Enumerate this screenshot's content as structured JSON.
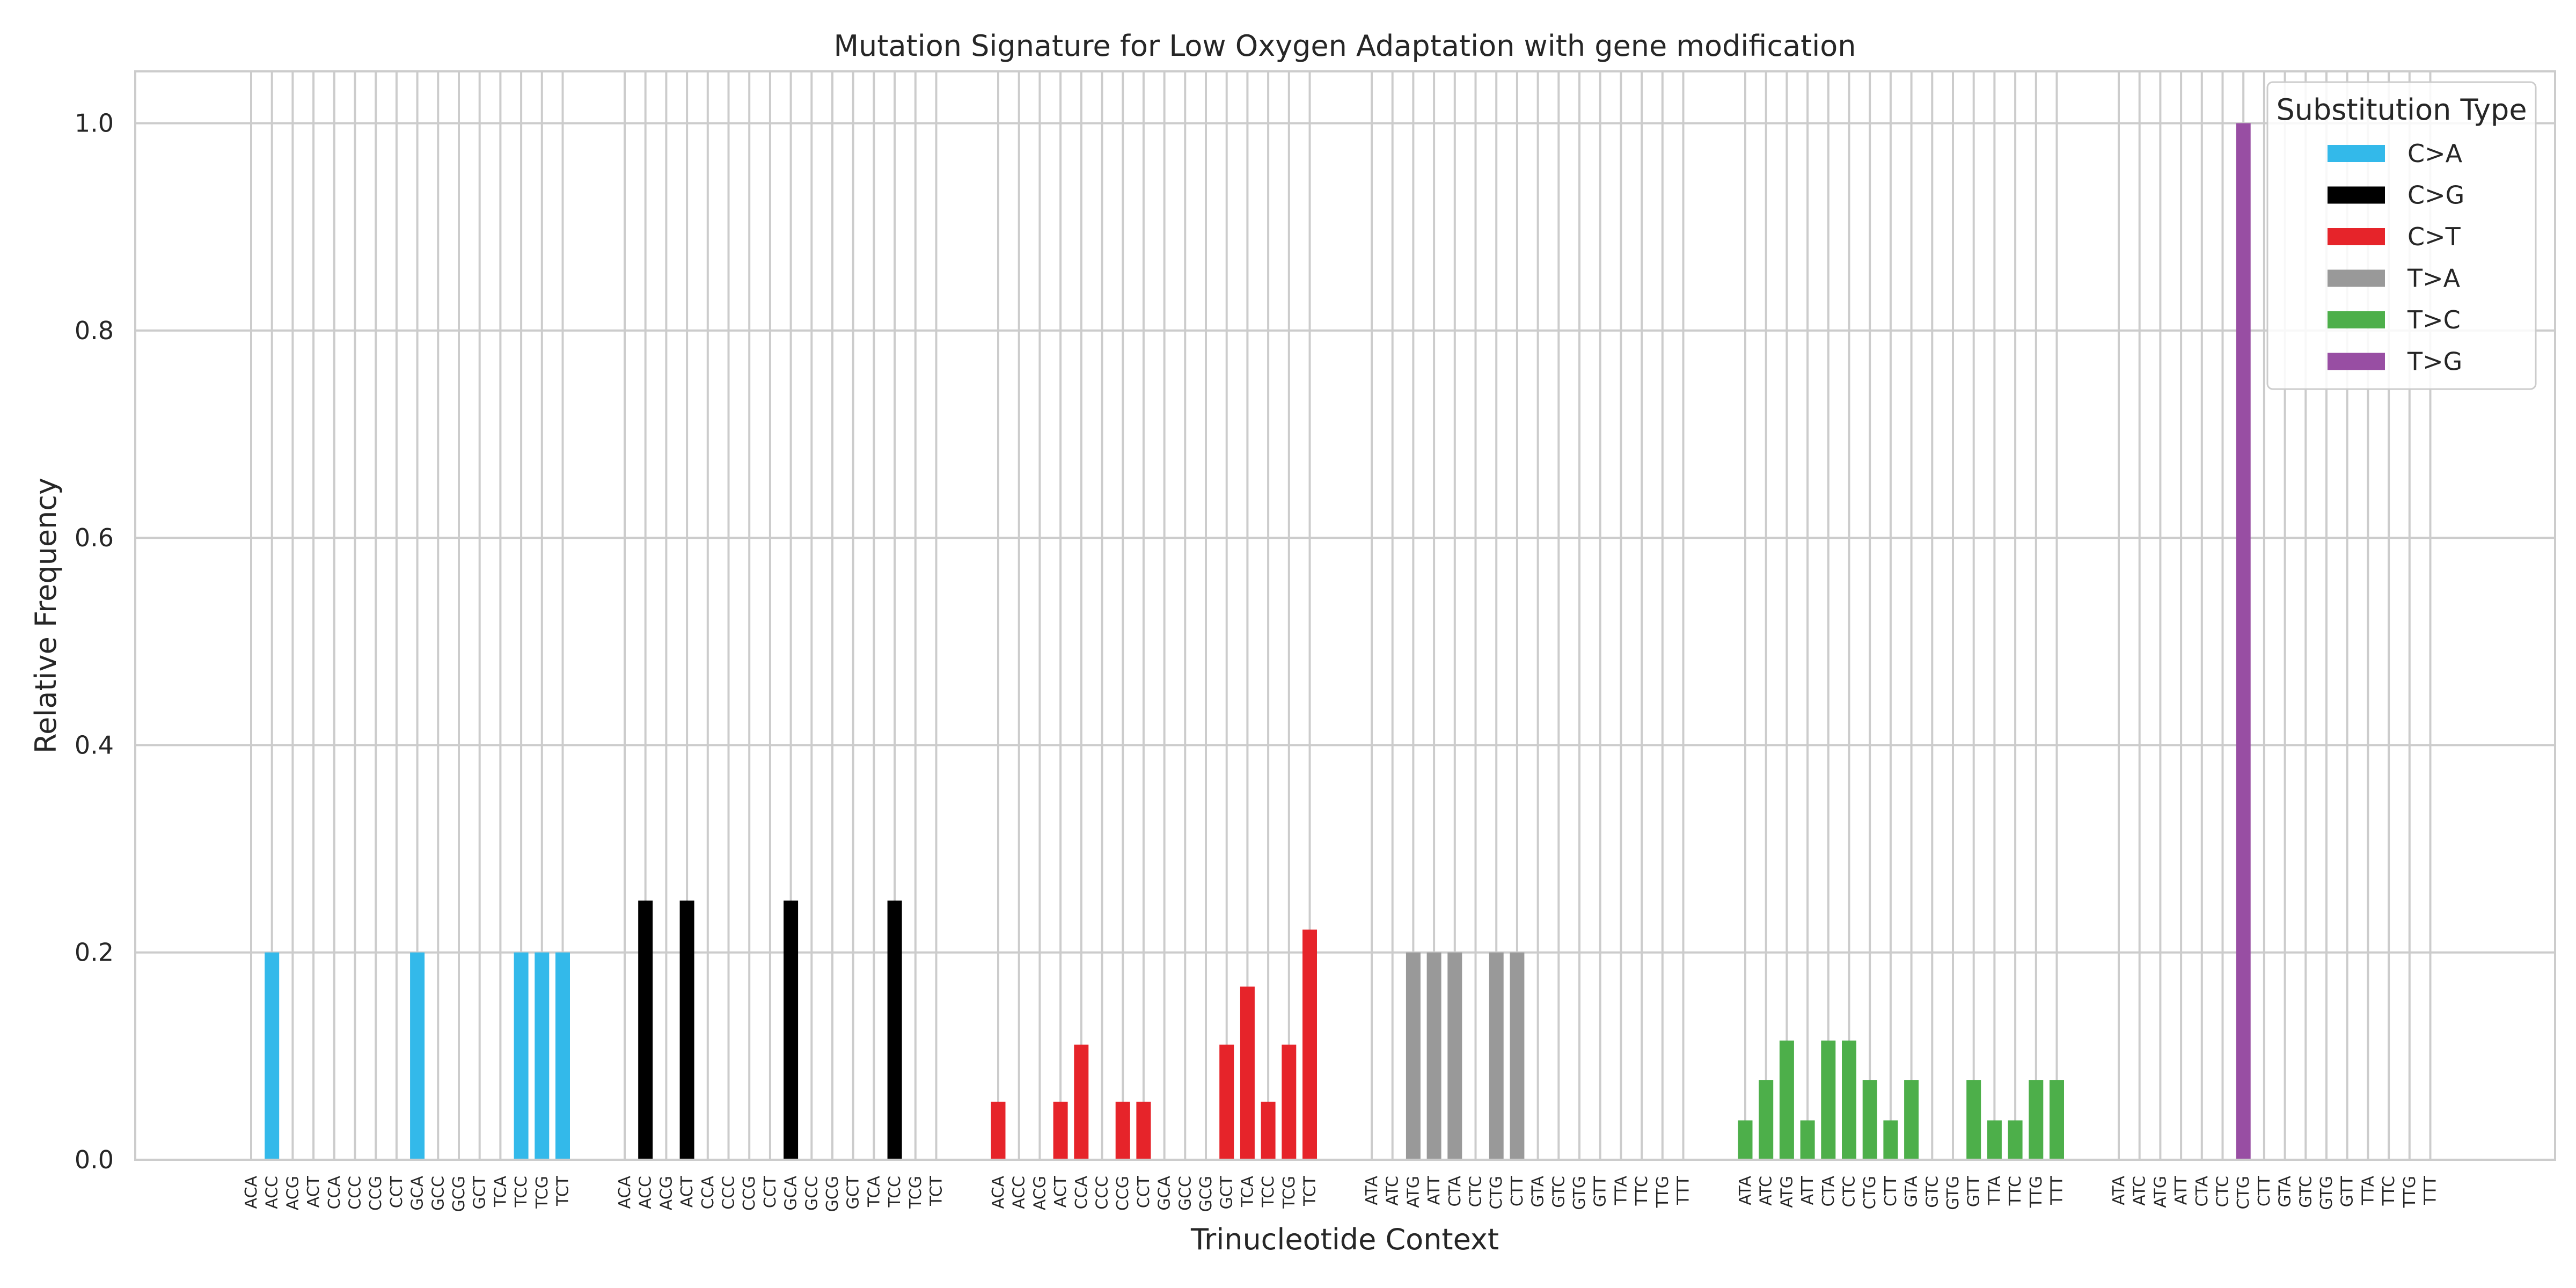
{
  "chart_data": {
    "type": "bar",
    "title": "Mutation Signature for Low Oxygen Adaptation with gene modification",
    "xlabel": "Trinucleotide Context",
    "ylabel": "Relative Frequency",
    "ylim": [
      0,
      1.05
    ],
    "yticks": [
      "0.0",
      "0.2",
      "0.4",
      "0.6",
      "0.8",
      "1.0"
    ],
    "ytick_values": [
      0,
      0.2,
      0.4,
      0.6,
      0.8,
      1.0
    ],
    "grid": true,
    "legend": {
      "title": "Substitution Type",
      "position": "top-right"
    },
    "series": [
      {
        "name": "C>A",
        "color": "#33B9EA",
        "categories": [
          "ACA",
          "ACC",
          "ACG",
          "ACT",
          "CCA",
          "CCC",
          "CCG",
          "CCT",
          "GCA",
          "GCC",
          "GCG",
          "GCT",
          "TCA",
          "TCC",
          "TCG",
          "TCT"
        ],
        "values": [
          0,
          0.2,
          0,
          0,
          0,
          0,
          0,
          0,
          0.2,
          0,
          0,
          0,
          0,
          0.2,
          0.2,
          0.2
        ]
      },
      {
        "name": "C>G",
        "color": "#000000",
        "categories": [
          "ACA",
          "ACC",
          "ACG",
          "ACT",
          "CCA",
          "CCC",
          "CCG",
          "CCT",
          "GCA",
          "GCC",
          "GCG",
          "GCT",
          "TCA",
          "TCC",
          "TCG",
          "TCT"
        ],
        "values": [
          0,
          0.25,
          0,
          0.25,
          0,
          0,
          0,
          0,
          0.25,
          0,
          0,
          0,
          0,
          0.25,
          0,
          0
        ]
      },
      {
        "name": "C>T",
        "color": "#E6242A",
        "categories": [
          "ACA",
          "ACC",
          "ACG",
          "ACT",
          "CCA",
          "CCC",
          "CCG",
          "CCT",
          "GCA",
          "GCC",
          "GCG",
          "GCT",
          "TCA",
          "TCC",
          "TCG",
          "TCT"
        ],
        "values": [
          0.056,
          0,
          0,
          0.056,
          0.111,
          0,
          0.056,
          0.056,
          0,
          0,
          0,
          0.111,
          0.167,
          0.056,
          0.111,
          0.222
        ]
      },
      {
        "name": "T>A",
        "color": "#999999",
        "categories": [
          "ATA",
          "ATC",
          "ATG",
          "ATT",
          "CTA",
          "CTC",
          "CTG",
          "CTT",
          "GTA",
          "GTC",
          "GTG",
          "GTT",
          "TTA",
          "TTC",
          "TTG",
          "TTT"
        ],
        "values": [
          0,
          0,
          0.2,
          0.2,
          0.2,
          0,
          0.2,
          0.2,
          0,
          0,
          0,
          0,
          0,
          0,
          0,
          0
        ]
      },
      {
        "name": "T>C",
        "color": "#4DAF4A",
        "categories": [
          "ATA",
          "ATC",
          "ATG",
          "ATT",
          "CTA",
          "CTC",
          "CTG",
          "CTT",
          "GTA",
          "GTC",
          "GTG",
          "GTT",
          "TTA",
          "TTC",
          "TTG",
          "TTT"
        ],
        "values": [
          0.038,
          0.077,
          0.115,
          0.038,
          0.115,
          0.115,
          0.077,
          0.038,
          0.077,
          0,
          0,
          0.077,
          0.038,
          0.038,
          0.077,
          0.077
        ]
      },
      {
        "name": "T>G",
        "color": "#984EA3",
        "categories": [
          "ATA",
          "ATC",
          "ATG",
          "ATT",
          "CTA",
          "CTC",
          "CTG",
          "CTT",
          "GTA",
          "GTC",
          "GTG",
          "GTT",
          "TTA",
          "TTC",
          "TTG",
          "TTT"
        ],
        "values": [
          0,
          0,
          0,
          0,
          0,
          0,
          1.0,
          0,
          0,
          0,
          0,
          0,
          0,
          0,
          0,
          0
        ]
      }
    ]
  }
}
